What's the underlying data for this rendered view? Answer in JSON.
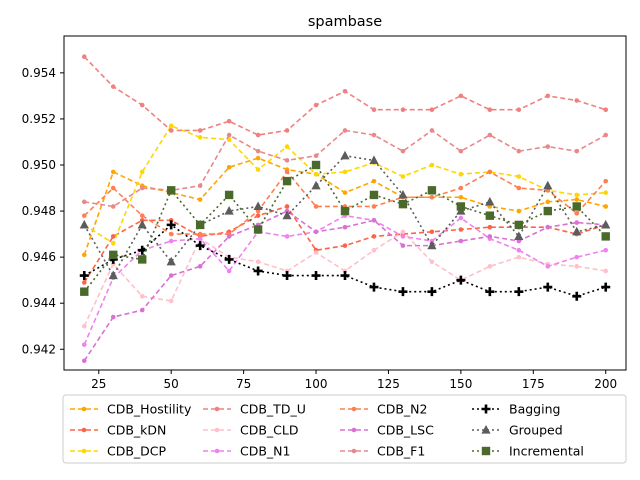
{
  "chart_data": {
    "type": "line",
    "title": "spambase",
    "xlabel": "",
    "ylabel": "",
    "xlim": [
      13,
      207
    ],
    "ylim": [
      0.9411,
      0.9556
    ],
    "xticks": [
      25,
      50,
      75,
      100,
      125,
      150,
      175,
      200
    ],
    "yticks": [
      0.942,
      0.944,
      0.946,
      0.948,
      0.95,
      0.952,
      0.954
    ],
    "grid": false,
    "legend_position": "bottom",
    "legend_columns": 4,
    "x": [
      20,
      30,
      40,
      50,
      60,
      70,
      80,
      90,
      100,
      110,
      120,
      130,
      140,
      150,
      160,
      170,
      180,
      190,
      200
    ],
    "series": [
      {
        "name": "CDB_Hostility",
        "color": "#ffa500",
        "linestyle": "dashed",
        "marker": "circle",
        "values": [
          0.9461,
          0.9497,
          0.9491,
          0.9488,
          0.9485,
          0.9499,
          0.9503,
          0.9498,
          0.9496,
          0.9488,
          0.9493,
          0.9486,
          0.9486,
          0.9486,
          0.9482,
          0.948,
          0.9484,
          0.9485,
          0.9482
        ]
      },
      {
        "name": "CDB_kDN",
        "color": "#ff6347",
        "linestyle": "dashed",
        "marker": "circle",
        "values": [
          0.9449,
          0.9469,
          0.9476,
          0.9476,
          0.9469,
          0.9471,
          0.9478,
          0.9482,
          0.9463,
          0.9465,
          0.9469,
          0.947,
          0.9471,
          0.9472,
          0.9473,
          0.9473,
          0.9473,
          0.947,
          0.9474
        ]
      },
      {
        "name": "CDB_DCP",
        "color": "#ffd700",
        "linestyle": "dashed",
        "marker": "circle",
        "values": [
          0.9474,
          0.9466,
          0.9497,
          0.9517,
          0.9512,
          0.9511,
          0.9498,
          0.9508,
          0.9496,
          0.9497,
          0.9501,
          0.9495,
          0.95,
          0.9496,
          0.9497,
          0.9495,
          0.9489,
          0.9487,
          0.9488
        ]
      },
      {
        "name": "CDB_TD_U",
        "color": "#f08080",
        "linestyle": "dashed",
        "marker": "circle",
        "values": [
          0.9547,
          0.9534,
          0.9526,
          0.9515,
          0.9515,
          0.9519,
          0.9513,
          0.9515,
          0.9526,
          0.9532,
          0.9524,
          0.9524,
          0.9524,
          0.953,
          0.9524,
          0.9524,
          0.953,
          0.9528,
          0.9524
        ]
      },
      {
        "name": "CDB_CLD",
        "color": "#ffc0cb",
        "linestyle": "dashed",
        "marker": "circle",
        "values": [
          0.943,
          0.9457,
          0.9443,
          0.9441,
          0.9468,
          0.946,
          0.9458,
          0.9454,
          0.9462,
          0.9454,
          0.9463,
          0.9471,
          0.9458,
          0.945,
          0.9456,
          0.946,
          0.9457,
          0.9456,
          0.9454
        ]
      },
      {
        "name": "CDB_N1",
        "color": "#ee82ee",
        "linestyle": "dashed",
        "marker": "circle",
        "values": [
          0.9422,
          0.9451,
          0.9463,
          0.9467,
          0.9468,
          0.9454,
          0.9471,
          0.9469,
          0.9471,
          0.9478,
          0.9476,
          0.9469,
          0.9467,
          0.9477,
          0.9468,
          0.9463,
          0.9456,
          0.946,
          0.9463
        ]
      },
      {
        "name": "CDB_N2",
        "color": "#ff7f50",
        "linestyle": "dashed",
        "marker": "circle",
        "values": [
          0.9478,
          0.949,
          0.9478,
          0.947,
          0.947,
          0.947,
          0.948,
          0.9497,
          0.9482,
          0.9482,
          0.9482,
          0.9486,
          0.9486,
          0.949,
          0.9497,
          0.949,
          0.9489,
          0.9479,
          0.9493
        ]
      },
      {
        "name": "CDB_LSC",
        "color": "#da70d6",
        "linestyle": "dashed",
        "marker": "circle",
        "values": [
          0.9415,
          0.9434,
          0.9437,
          0.9452,
          0.9456,
          0.9469,
          0.9474,
          0.948,
          0.9471,
          0.9473,
          0.9476,
          0.9465,
          0.9465,
          0.9467,
          0.9469,
          0.9467,
          0.9473,
          0.9475,
          0.9474
        ]
      },
      {
        "name": "CDB_F1",
        "color": "#e9888a",
        "linestyle": "dashed",
        "marker": "circle",
        "values": [
          0.9484,
          0.9482,
          0.949,
          0.9489,
          0.9491,
          0.9513,
          0.9506,
          0.9502,
          0.9504,
          0.9515,
          0.9513,
          0.9506,
          0.9515,
          0.9506,
          0.9513,
          0.9506,
          0.9508,
          0.9506,
          0.9513
        ]
      },
      {
        "name": "Bagging",
        "color": "#000000",
        "linestyle": "dotted",
        "marker": "plus",
        "values": [
          0.9452,
          0.9459,
          0.9463,
          0.9474,
          0.9465,
          0.9459,
          0.9454,
          0.9452,
          0.9452,
          0.9452,
          0.9447,
          0.9445,
          0.9445,
          0.945,
          0.9445,
          0.9445,
          0.9447,
          0.9443,
          0.9447
        ]
      },
      {
        "name": "Grouped",
        "color": "#5c5c5c",
        "linestyle": "dotted",
        "marker": "triangle",
        "values": [
          0.9474,
          0.9452,
          0.9474,
          0.9458,
          0.9474,
          0.948,
          0.9482,
          0.9478,
          0.9491,
          0.9504,
          0.9502,
          0.9487,
          0.9465,
          0.948,
          0.9484,
          0.9469,
          0.9491,
          0.9471,
          0.9474
        ]
      },
      {
        "name": "Incremental",
        "color": "#4a6a2c",
        "linestyle": "dotted",
        "marker": "square",
        "values": [
          0.9445,
          0.9461,
          0.9459,
          0.9489,
          0.9474,
          0.9487,
          0.9472,
          0.9493,
          0.95,
          0.948,
          0.9487,
          0.9483,
          0.9489,
          0.9482,
          0.9478,
          0.9474,
          0.948,
          0.9482,
          0.9469
        ]
      }
    ]
  }
}
